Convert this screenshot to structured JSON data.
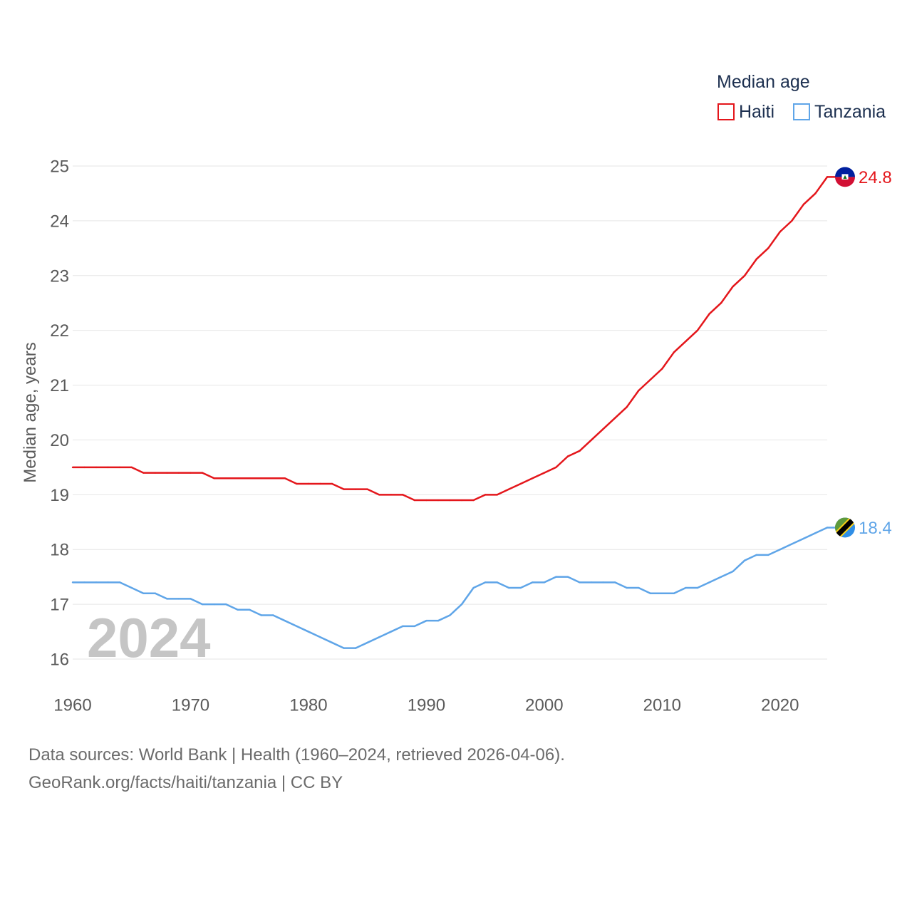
{
  "chart_data": {
    "type": "line",
    "legend_title": "Median age",
    "legend_position": "top-right",
    "ylabel": "Median age, years",
    "xlim": [
      1960,
      2024
    ],
    "ylim": [
      16,
      25
    ],
    "xticks": [
      1960,
      1970,
      1980,
      1990,
      2000,
      2010,
      2020
    ],
    "yticks": [
      16,
      17,
      18,
      19,
      20,
      21,
      22,
      23,
      24,
      25
    ],
    "grid": true,
    "annotation": "2024",
    "x": [
      1960,
      1961,
      1962,
      1963,
      1964,
      1965,
      1966,
      1967,
      1968,
      1969,
      1970,
      1971,
      1972,
      1973,
      1974,
      1975,
      1976,
      1977,
      1978,
      1979,
      1980,
      1981,
      1982,
      1983,
      1984,
      1985,
      1986,
      1987,
      1988,
      1989,
      1990,
      1991,
      1992,
      1993,
      1994,
      1995,
      1996,
      1997,
      1998,
      1999,
      2000,
      2001,
      2002,
      2003,
      2004,
      2005,
      2006,
      2007,
      2008,
      2009,
      2010,
      2011,
      2012,
      2013,
      2014,
      2015,
      2016,
      2017,
      2018,
      2019,
      2020,
      2021,
      2022,
      2023,
      2024
    ],
    "series": [
      {
        "name": "Haiti",
        "color": "#e4161b",
        "flag_icon": "haiti-flag-icon",
        "end_label": "24.8",
        "values": [
          19.5,
          19.5,
          19.5,
          19.5,
          19.5,
          19.5,
          19.4,
          19.4,
          19.4,
          19.4,
          19.4,
          19.4,
          19.3,
          19.3,
          19.3,
          19.3,
          19.3,
          19.3,
          19.3,
          19.2,
          19.2,
          19.2,
          19.2,
          19.1,
          19.1,
          19.1,
          19.0,
          19.0,
          19.0,
          18.9,
          18.9,
          18.9,
          18.9,
          18.9,
          18.9,
          19.0,
          19.0,
          19.1,
          19.2,
          19.3,
          19.4,
          19.5,
          19.7,
          19.8,
          20.0,
          20.2,
          20.4,
          20.6,
          20.9,
          21.1,
          21.3,
          21.6,
          21.8,
          22.0,
          22.3,
          22.5,
          22.8,
          23.0,
          23.3,
          23.5,
          23.8,
          24.0,
          24.3,
          24.5,
          24.8
        ]
      },
      {
        "name": "Tanzania",
        "color": "#5fa5e8",
        "flag_icon": "tanzania-flag-icon",
        "end_label": "18.4",
        "values": [
          17.4,
          17.4,
          17.4,
          17.4,
          17.4,
          17.3,
          17.2,
          17.2,
          17.1,
          17.1,
          17.1,
          17.0,
          17.0,
          17.0,
          16.9,
          16.9,
          16.8,
          16.8,
          16.7,
          16.6,
          16.5,
          16.4,
          16.3,
          16.2,
          16.2,
          16.3,
          16.4,
          16.5,
          16.6,
          16.6,
          16.7,
          16.7,
          16.8,
          17.0,
          17.3,
          17.4,
          17.4,
          17.3,
          17.3,
          17.4,
          17.4,
          17.5,
          17.5,
          17.4,
          17.4,
          17.4,
          17.4,
          17.3,
          17.3,
          17.2,
          17.2,
          17.2,
          17.3,
          17.3,
          17.4,
          17.5,
          17.6,
          17.8,
          17.9,
          17.9,
          18.0,
          18.1,
          18.2,
          18.3,
          18.4
        ]
      }
    ]
  },
  "footer": {
    "sources": "Data sources: World Bank | Health (1960–2024, retrieved 2026-04-06).",
    "credit": "GeoRank.org/facts/haiti/tanzania | CC BY"
  }
}
